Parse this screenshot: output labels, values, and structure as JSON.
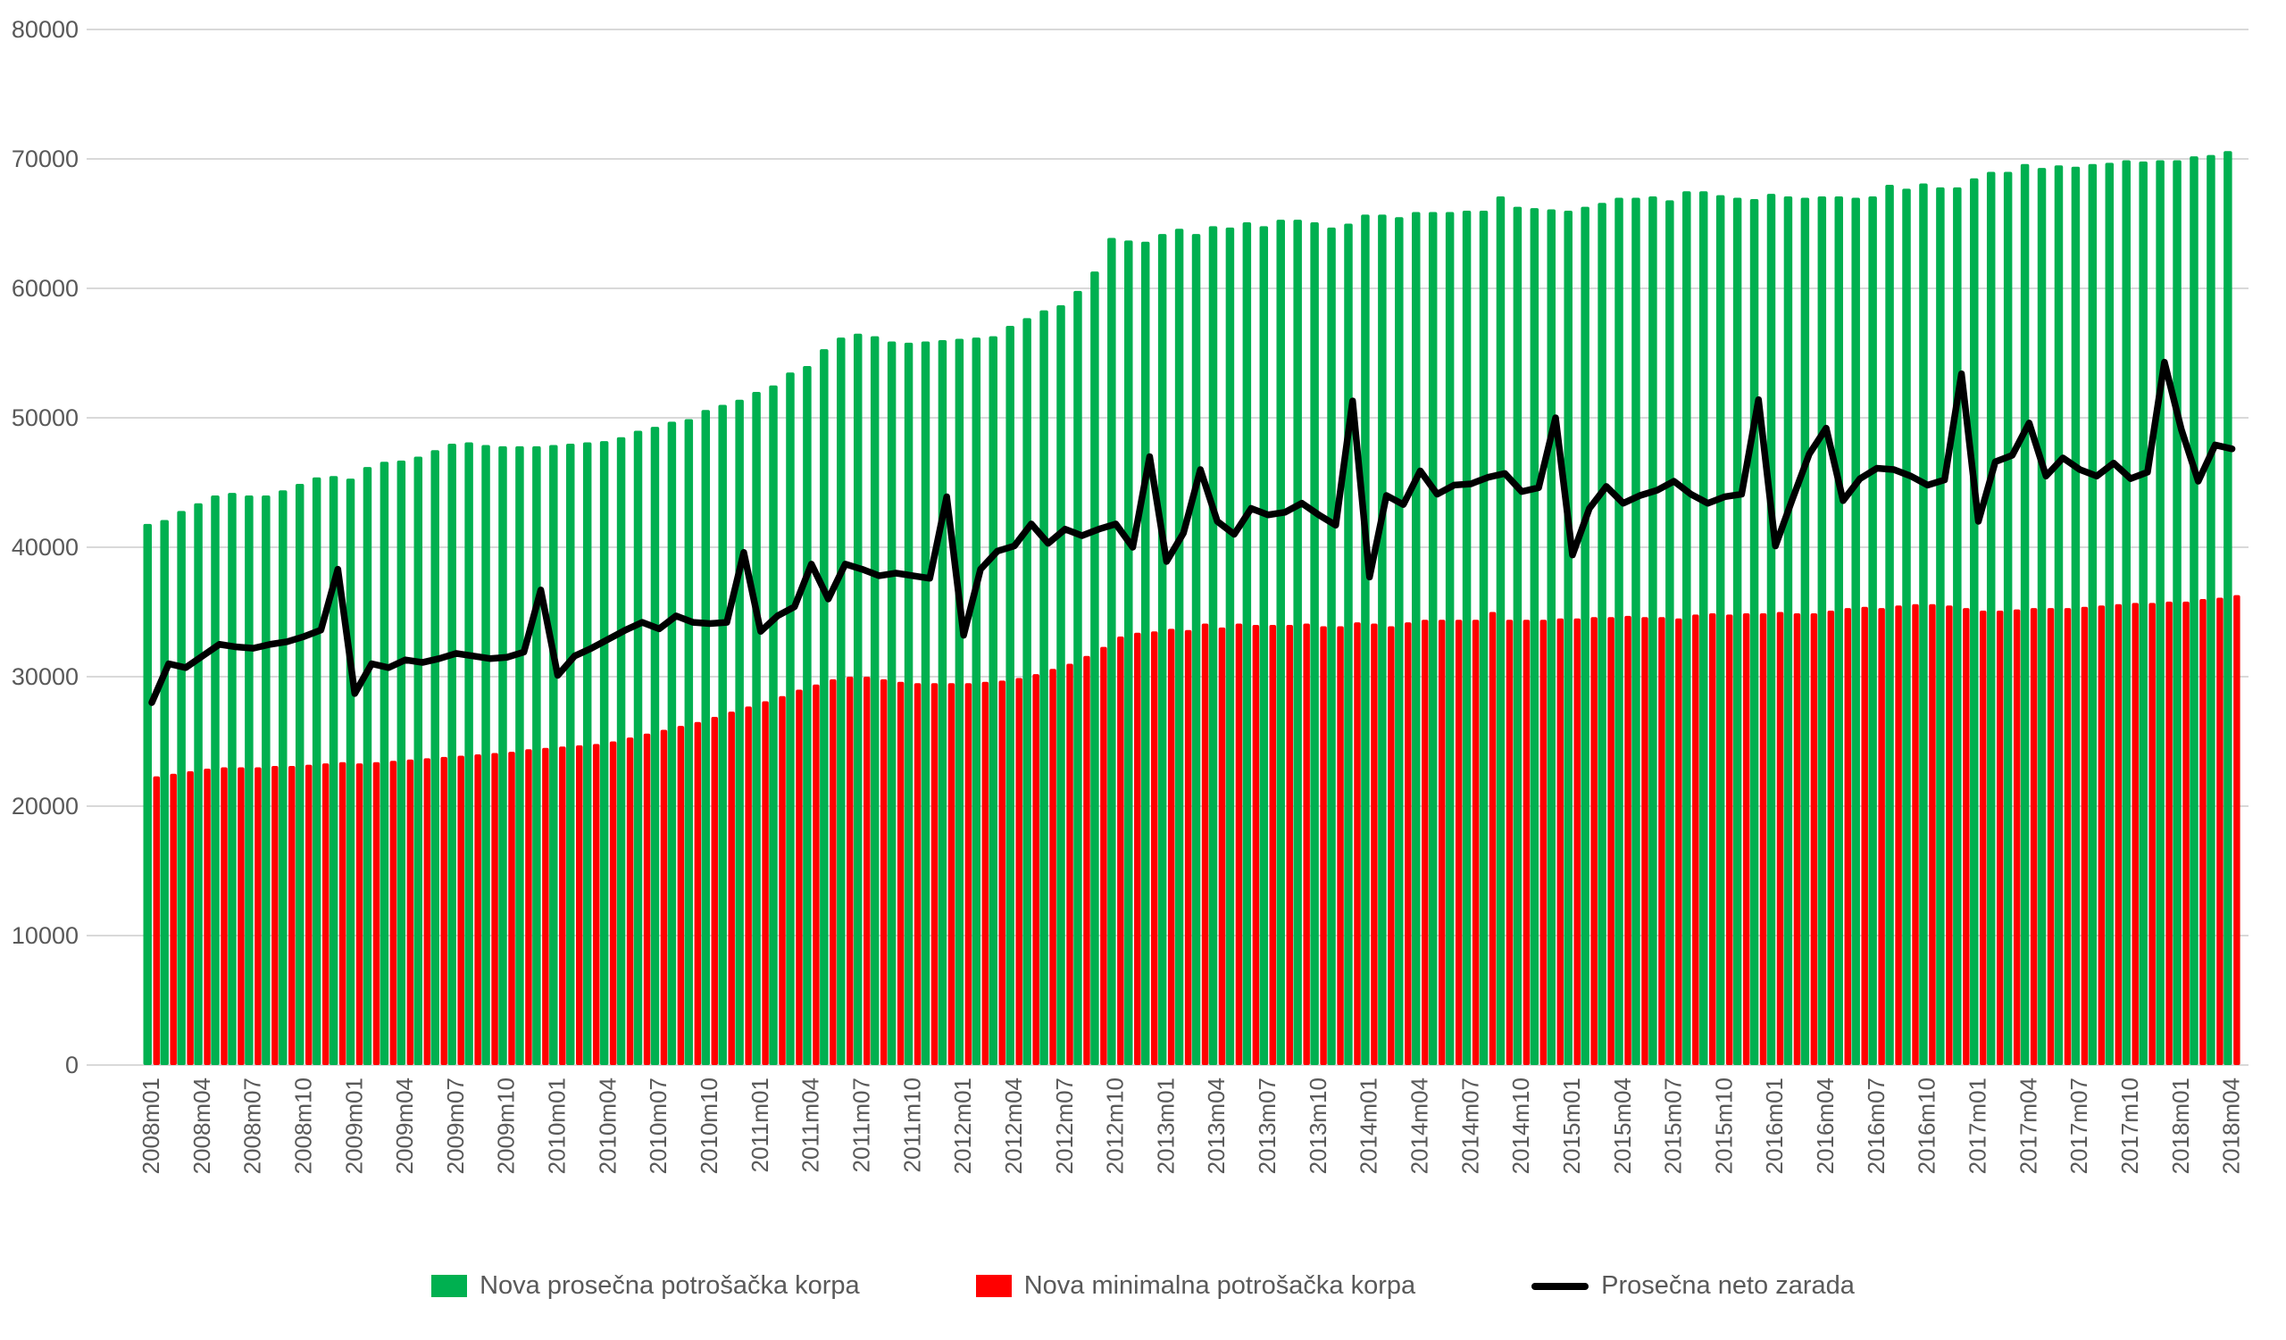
{
  "chart_data": {
    "type": "bar",
    "subtype": "combo-bar-line",
    "title": "",
    "xlabel": "",
    "ylabel": "",
    "ylim": [
      0,
      80000
    ],
    "y_ticks": [
      0,
      10000,
      20000,
      30000,
      40000,
      50000,
      60000,
      70000,
      80000
    ],
    "x_tick_every": 3,
    "grid": true,
    "gridline_color": "#d9d9d9",
    "axis_text_color": "#595959",
    "background_color": "#ffffff",
    "legend_position": "bottom",
    "categories": [
      "2008m01",
      "2008m02",
      "2008m03",
      "2008m04",
      "2008m05",
      "2008m06",
      "2008m07",
      "2008m08",
      "2008m09",
      "2008m10",
      "2008m11",
      "2008m12",
      "2009m01",
      "2009m02",
      "2009m03",
      "2009m04",
      "2009m05",
      "2009m06",
      "2009m07",
      "2009m08",
      "2009m09",
      "2009m10",
      "2009m11",
      "2009m12",
      "2010m01",
      "2010m02",
      "2010m03",
      "2010m04",
      "2010m05",
      "2010m06",
      "2010m07",
      "2010m08",
      "2010m09",
      "2010m10",
      "2010m11",
      "2010m12",
      "2011m01",
      "2011m02",
      "2011m03",
      "2011m04",
      "2011m05",
      "2011m06",
      "2011m07",
      "2011m08",
      "2011m09",
      "2011m10",
      "2011m11",
      "2011m12",
      "2012m01",
      "2012m02",
      "2012m03",
      "2012m04",
      "2012m05",
      "2012m06",
      "2012m07",
      "2012m08",
      "2012m09",
      "2012m10",
      "2012m11",
      "2012m12",
      "2013m01",
      "2013m02",
      "2013m03",
      "2013m04",
      "2013m05",
      "2013m06",
      "2013m07",
      "2013m08",
      "2013m09",
      "2013m10",
      "2013m11",
      "2013m12",
      "2014m01",
      "2014m02",
      "2014m03",
      "2014m04",
      "2014m05",
      "2014m06",
      "2014m07",
      "2014m08",
      "2014m09",
      "2014m10",
      "2014m11",
      "2014m12",
      "2015m01",
      "2015m02",
      "2015m03",
      "2015m04",
      "2015m05",
      "2015m06",
      "2015m07",
      "2015m08",
      "2015m09",
      "2015m10",
      "2015m11",
      "2015m12",
      "2016m01",
      "2016m02",
      "2016m03",
      "2016m04",
      "2016m05",
      "2016m06",
      "2016m07",
      "2016m08",
      "2016m09",
      "2016m10",
      "2016m11",
      "2016m12",
      "2017m01",
      "2017m02",
      "2017m03",
      "2017m04",
      "2017m05",
      "2017m06",
      "2017m07",
      "2017m08",
      "2017m09",
      "2017m10",
      "2017m11",
      "2017m12",
      "2018m01",
      "2018m02",
      "2018m03",
      "2018m04"
    ],
    "series": [
      {
        "name": "Nova prosečna potrošačka korpa",
        "type": "bar",
        "color": "#00b050",
        "values": [
          41800,
          42100,
          42800,
          43400,
          44000,
          44200,
          44000,
          44000,
          44400,
          44900,
          45400,
          45500,
          45300,
          46200,
          46600,
          46700,
          47000,
          47500,
          48000,
          48100,
          47900,
          47800,
          47800,
          47800,
          47900,
          48000,
          48100,
          48200,
          48500,
          49000,
          49300,
          49700,
          49900,
          50600,
          51000,
          51400,
          52000,
          52500,
          53500,
          54000,
          55300,
          56200,
          56500,
          56300,
          55900,
          55800,
          55900,
          56000,
          56100,
          56200,
          56300,
          57100,
          57700,
          58300,
          58700,
          59800,
          61300,
          63900,
          63700,
          63600,
          64200,
          64600,
          64200,
          64800,
          64700,
          65100,
          64800,
          65300,
          65300,
          65100,
          64700,
          65000,
          65700,
          65700,
          65500,
          65900,
          65900,
          65900,
          66000,
          66000,
          67100,
          66300,
          66200,
          66100,
          66000,
          66300,
          66600,
          67000,
          67000,
          67100,
          66800,
          67500,
          67500,
          67200,
          67000,
          66900,
          67300,
          67100,
          67000,
          67100,
          67100,
          67000,
          67100,
          68000,
          67700,
          68100,
          67800,
          67800,
          68500,
          69000,
          69000,
          69600,
          69300,
          69500,
          69400,
          69600,
          69700,
          69900,
          69800,
          69900,
          69900,
          70200,
          70300,
          70600
        ]
      },
      {
        "name": "Nova minimalna potrošačka korpa",
        "type": "bar",
        "color": "#ff0000",
        "values": [
          22300,
          22500,
          22700,
          22900,
          23000,
          23000,
          23000,
          23100,
          23100,
          23200,
          23300,
          23400,
          23300,
          23400,
          23500,
          23600,
          23700,
          23800,
          23900,
          24000,
          24100,
          24200,
          24400,
          24500,
          24600,
          24700,
          24800,
          25000,
          25300,
          25600,
          25900,
          26200,
          26500,
          26900,
          27300,
          27700,
          28100,
          28500,
          29000,
          29400,
          29800,
          30000,
          30000,
          29800,
          29600,
          29500,
          29500,
          29500,
          29500,
          29600,
          29700,
          29900,
          30200,
          30600,
          31000,
          31600,
          32300,
          33100,
          33400,
          33500,
          33700,
          33600,
          34100,
          33800,
          34100,
          34000,
          34000,
          34000,
          34100,
          33900,
          33900,
          34200,
          34100,
          33900,
          34200,
          34400,
          34400,
          34400,
          34400,
          35000,
          34400,
          34400,
          34400,
          34500,
          34500,
          34600,
          34600,
          34700,
          34600,
          34600,
          34500,
          34800,
          34900,
          34800,
          34900,
          34900,
          35000,
          34900,
          34900,
          35100,
          35300,
          35400,
          35300,
          35500,
          35600,
          35600,
          35500,
          35300,
          35100,
          35100,
          35200,
          35300,
          35300,
          35300,
          35400,
          35500,
          35600,
          35700,
          35700,
          35800,
          35800,
          36000,
          36100,
          36300
        ]
      },
      {
        "name": "Prosečna neto zarada",
        "type": "line",
        "color": "#000000",
        "values": [
          28000,
          31000,
          30700,
          31600,
          32500,
          32300,
          32200,
          32500,
          32700,
          33100,
          33600,
          38300,
          28700,
          31000,
          30700,
          31300,
          31100,
          31400,
          31800,
          31600,
          31400,
          31500,
          31900,
          36700,
          30100,
          31600,
          32200,
          32900,
          33600,
          34200,
          33700,
          34700,
          34200,
          34100,
          34200,
          39600,
          33500,
          34700,
          35400,
          38700,
          36000,
          38700,
          38300,
          37800,
          38000,
          37800,
          37600,
          43900,
          33200,
          38300,
          39700,
          40100,
          41800,
          40300,
          41400,
          40900,
          41400,
          41800,
          40000,
          47000,
          38900,
          41100,
          46000,
          42000,
          41000,
          43000,
          42500,
          42700,
          43400,
          42500,
          41700,
          51300,
          37700,
          44000,
          43300,
          45900,
          44100,
          44800,
          44900,
          45400,
          45700,
          44300,
          44600,
          50000,
          39400,
          43000,
          44700,
          43400,
          44000,
          44400,
          45100,
          44100,
          43400,
          43900,
          44100,
          51400,
          40100,
          43700,
          47200,
          49200,
          43600,
          45300,
          46100,
          46000,
          45500,
          44800,
          45200,
          53400,
          42000,
          46600,
          47100,
          49600,
          45500,
          46900,
          46000,
          45500,
          46500,
          45300,
          45800,
          54300,
          49100,
          45100,
          47900,
          47600
        ]
      }
    ]
  },
  "legend": {
    "item1": "Nova prosečna potrošačka korpa",
    "item2": "Nova minimalna potrošačka korpa",
    "item3": "Prosečna neto zarada"
  }
}
